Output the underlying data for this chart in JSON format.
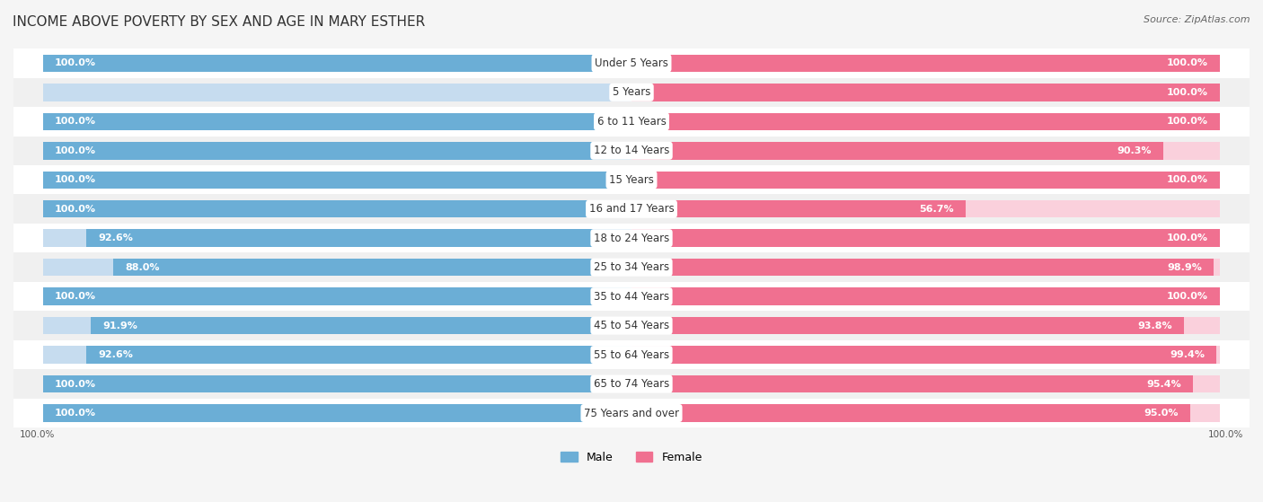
{
  "title": "INCOME ABOVE POVERTY BY SEX AND AGE IN MARY ESTHER",
  "source": "Source: ZipAtlas.com",
  "categories": [
    "Under 5 Years",
    "5 Years",
    "6 to 11 Years",
    "12 to 14 Years",
    "15 Years",
    "16 and 17 Years",
    "18 to 24 Years",
    "25 to 34 Years",
    "35 to 44 Years",
    "45 to 54 Years",
    "55 to 64 Years",
    "65 to 74 Years",
    "75 Years and over"
  ],
  "male": [
    100.0,
    0.0,
    100.0,
    100.0,
    100.0,
    100.0,
    92.6,
    88.0,
    100.0,
    91.9,
    92.6,
    100.0,
    100.0
  ],
  "female": [
    100.0,
    100.0,
    100.0,
    90.3,
    100.0,
    56.7,
    100.0,
    98.9,
    100.0,
    93.8,
    99.4,
    95.4,
    95.0
  ],
  "male_color": "#6baed6",
  "female_color": "#f07090",
  "male_color_light": "#c6dcef",
  "female_color_light": "#fad0dc",
  "row_color_even": "#ffffff",
  "row_color_odd": "#f0f0f0",
  "title_fontsize": 11,
  "label_fontsize": 8.5,
  "value_fontsize": 8,
  "bar_height": 0.6,
  "max_val": 100.0
}
